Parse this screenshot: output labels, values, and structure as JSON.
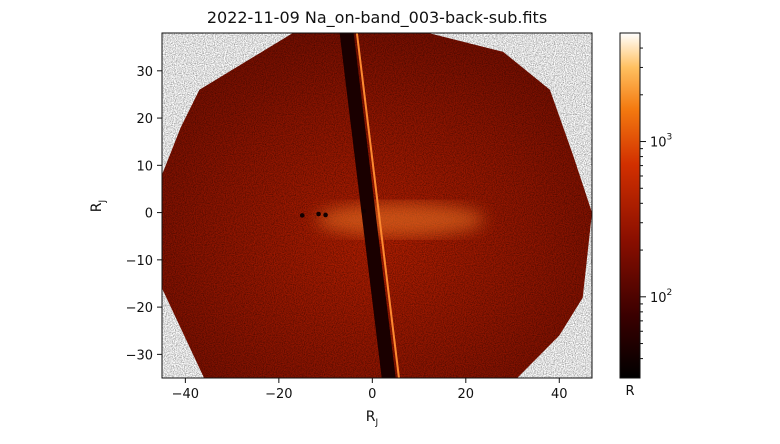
{
  "chart_data": {
    "type": "heatmap",
    "title": "2022-11-09 Na_on-band_003-back-sub.fits",
    "xlabel": "R",
    "xlabel_sub": "J",
    "ylabel": "R",
    "ylabel_sub": "J",
    "xlim": [
      -45,
      47
    ],
    "ylim": [
      -35,
      38
    ],
    "xticks": [
      -40,
      -20,
      0,
      20,
      40
    ],
    "yticks": [
      -30,
      -20,
      -10,
      0,
      10,
      20,
      30
    ],
    "tick_labels_x": [
      "−40",
      "−20",
      "0",
      "20",
      "40"
    ],
    "tick_labels_y": [
      "−30",
      "−20",
      "−10",
      "0",
      "10",
      "20",
      "30"
    ],
    "colorbar": {
      "label": "R",
      "scale": "log",
      "range": [
        30,
        5000
      ],
      "ticks": [
        {
          "value": 100,
          "base": "10",
          "exp": "2"
        },
        {
          "value": 1000,
          "base": "10",
          "exp": "3"
        }
      ],
      "colormap": "gist_heat"
    },
    "occulter_band": {
      "x_center_top": -5.5,
      "x_center_bottom": 3.5,
      "width": 3
    },
    "bright_source": {
      "x": 0,
      "y": 0
    }
  }
}
